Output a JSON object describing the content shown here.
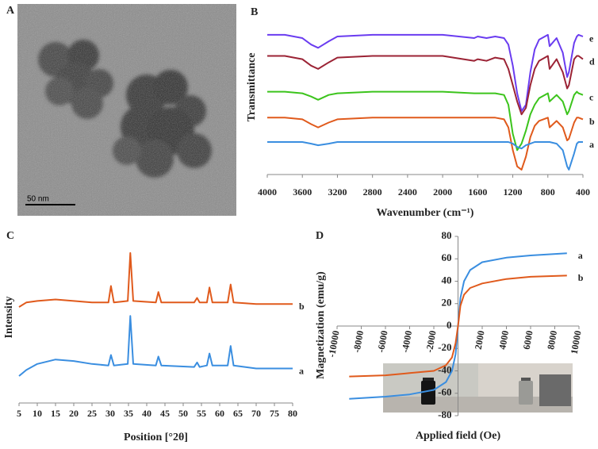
{
  "chart_data": [
    {
      "type": "image",
      "label": "A",
      "scale_bar": "50 nm"
    },
    {
      "type": "line",
      "label": "B",
      "xlabel": "Wavenumber (cm⁻¹)",
      "ylabel": "Transmittance",
      "xlim": [
        4000,
        400
      ],
      "ylim": [
        -5,
        100
      ],
      "xticks": [
        4000,
        3600,
        3200,
        2800,
        2400,
        2000,
        1600,
        1200,
        800,
        400
      ],
      "x": [
        4000,
        3800,
        3600,
        3500,
        3420,
        3300,
        3200,
        2800,
        2400,
        2000,
        1640,
        1600,
        1500,
        1400,
        1300,
        1250,
        1200,
        1150,
        1100,
        1050,
        1000,
        950,
        900,
        800,
        780,
        700,
        630,
        580,
        560,
        500,
        470,
        450,
        400
      ],
      "series": [
        {
          "name": "e",
          "color": "#6a3cf0",
          "values": [
            81,
            81,
            79,
            75,
            73,
            77,
            80,
            81,
            81,
            81,
            79,
            80,
            79,
            80,
            79,
            75,
            62,
            45,
            34,
            38,
            58,
            72,
            78,
            81,
            74,
            79,
            70,
            55,
            58,
            76,
            80,
            81,
            80
          ]
        },
        {
          "name": "d",
          "color": "#9b2335",
          "values": [
            68,
            68,
            66,
            62,
            60,
            64,
            67,
            68,
            68,
            68,
            65,
            66,
            65,
            67,
            66,
            60,
            50,
            40,
            32,
            36,
            50,
            60,
            65,
            68,
            60,
            66,
            58,
            48,
            50,
            66,
            68,
            68,
            66
          ]
        },
        {
          "name": "c",
          "color": "#3cc41c",
          "values": [
            46,
            46,
            45,
            43,
            41,
            44,
            45,
            46,
            46,
            46,
            45,
            45,
            45,
            45,
            44,
            38,
            20,
            10,
            14,
            22,
            32,
            38,
            42,
            45,
            40,
            44,
            40,
            32,
            34,
            44,
            46,
            45,
            44
          ]
        },
        {
          "name": "b",
          "color": "#e05a1c",
          "values": [
            30,
            30,
            29,
            26,
            24,
            27,
            29,
            30,
            30,
            30,
            30,
            30,
            30,
            30,
            29,
            24,
            10,
            0,
            -2,
            6,
            18,
            25,
            28,
            30,
            24,
            28,
            24,
            16,
            17,
            27,
            30,
            30,
            29
          ]
        },
        {
          "name": "a",
          "color": "#3a8ee0",
          "values": [
            15,
            15,
            15,
            14,
            13,
            14,
            15,
            15,
            15,
            15,
            15,
            15,
            15,
            15,
            15,
            15,
            14,
            12,
            11,
            13,
            14,
            15,
            15,
            15,
            15,
            14,
            10,
            0,
            -2,
            8,
            14,
            15,
            15
          ]
        }
      ]
    },
    {
      "type": "line",
      "label": "C",
      "xlabel": "Position [°2θ]",
      "ylabel": "Intensity",
      "xlim": [
        5,
        80
      ],
      "ylim": [
        -10,
        100
      ],
      "xticks": [
        5,
        10,
        15,
        20,
        25,
        30,
        35,
        40,
        45,
        50,
        55,
        60,
        65,
        70,
        75,
        80
      ],
      "x": [
        5,
        7,
        10,
        15,
        20,
        25,
        29.5,
        30.2,
        31,
        34.8,
        35.5,
        36.3,
        42.5,
        43.2,
        44,
        53,
        53.8,
        54.5,
        56.5,
        57.2,
        58,
        62.2,
        63,
        63.8,
        70,
        75,
        80
      ],
      "series": [
        {
          "name": "b",
          "color": "#e05a1c",
          "values": [
            54,
            57,
            58,
            59,
            58,
            57,
            57,
            68,
            57,
            58,
            90,
            58,
            57,
            64,
            57,
            57,
            60,
            57,
            57,
            67,
            57,
            57,
            69,
            57,
            56,
            56,
            56
          ]
        },
        {
          "name": "a",
          "color": "#3a8ee0",
          "values": [
            8,
            12,
            16,
            19,
            18,
            16,
            15,
            22,
            15,
            16,
            48,
            16,
            15,
            21,
            15,
            14,
            17,
            14,
            15,
            23,
            15,
            15,
            28,
            15,
            13,
            13,
            13
          ]
        }
      ]
    },
    {
      "type": "line",
      "label": "D",
      "xlabel": "Applied field (Oe)",
      "ylabel": "Magnetization (emu/g)",
      "xlim": [
        -10000,
        10000
      ],
      "ylim": [
        -80,
        80
      ],
      "xticks": [
        -10000,
        -8000,
        -6000,
        -4000,
        -2000,
        0,
        2000,
        4000,
        6000,
        8000,
        10000
      ],
      "yticks": [
        -80,
        -60,
        -40,
        -20,
        0,
        20,
        40,
        60,
        80
      ],
      "x": [
        -9000,
        -6000,
        -4000,
        -2000,
        -1000,
        -500,
        -200,
        0,
        200,
        500,
        1000,
        2000,
        4000,
        6000,
        9000
      ],
      "series": [
        {
          "name": "a",
          "color": "#3a8ee0",
          "values": [
            -65,
            -63,
            -61,
            -57,
            -50,
            -40,
            -25,
            0,
            25,
            40,
            50,
            57,
            61,
            63,
            65
          ]
        },
        {
          "name": "b",
          "color": "#e05a1c",
          "values": [
            -45,
            -44,
            -42,
            -40,
            -35,
            -28,
            -15,
            0,
            18,
            28,
            34,
            38,
            42,
            44,
            45
          ]
        }
      ]
    }
  ]
}
